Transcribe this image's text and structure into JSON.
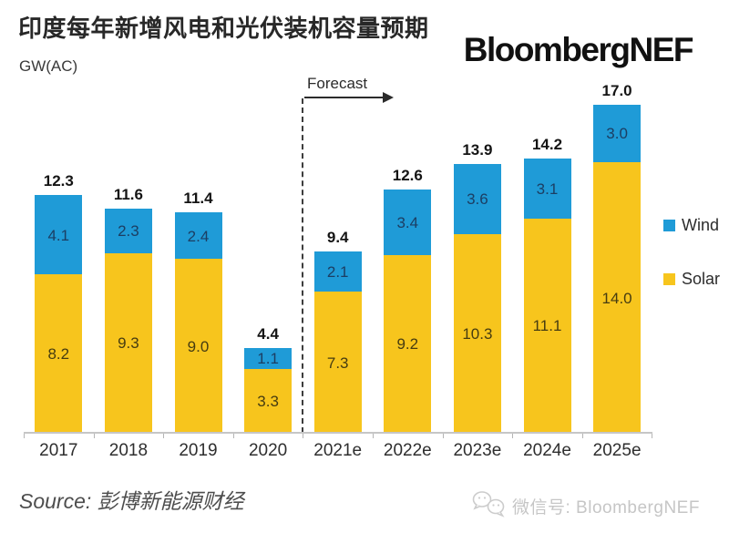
{
  "header": {
    "title": "印度每年新增风电和光伏装机容量预期",
    "brand": "BloombergNEF"
  },
  "chart": {
    "unit_label": "GW(AC)",
    "forecast_label": "Forecast"
  },
  "chart_data": {
    "type": "bar",
    "stacked": true,
    "title": "印度每年新增风电和光伏装机容量预期",
    "ylabel": "GW(AC)",
    "unit": "GW",
    "categories": [
      "2017",
      "2018",
      "2019",
      "2020",
      "2021e",
      "2022e",
      "2023e",
      "2024e",
      "2025e"
    ],
    "series": [
      {
        "name": "Solar",
        "color": "#F7C51D",
        "label_color": "#463c11",
        "values": [
          8.2,
          9.3,
          9.0,
          3.3,
          7.3,
          9.2,
          10.3,
          11.1,
          14.0
        ],
        "labels": [
          "8.2",
          "9.3",
          "9.0",
          "3.3",
          "7.3",
          "9.2",
          "10.3",
          "11.1",
          "14.0"
        ]
      },
      {
        "name": "Wind",
        "color": "#1F9BD7",
        "label_color": "#1c3e63",
        "values": [
          4.1,
          2.3,
          2.4,
          1.1,
          2.1,
          3.4,
          3.6,
          3.1,
          3.0
        ],
        "labels": [
          "4.1",
          "2.3",
          "2.4",
          "1.1",
          "2.1",
          "3.4",
          "3.6",
          "3.1",
          "3.0"
        ]
      }
    ],
    "totals": [
      12.3,
      11.6,
      11.4,
      4.4,
      9.4,
      12.6,
      13.9,
      14.2,
      17.0
    ],
    "total_labels": [
      "12.3",
      "11.6",
      "11.4",
      "4.4",
      "9.4",
      "12.6",
      "13.9",
      "14.2",
      "17.0"
    ],
    "forecast_divider_after_index": 3,
    "forecast_label": "Forecast",
    "legend_position": "right",
    "ylim": [
      0,
      18
    ],
    "grid": false
  },
  "legend": {
    "items": [
      {
        "label": "Wind",
        "color": "#1F9BD7"
      },
      {
        "label": "Solar",
        "color": "#F7C51D"
      }
    ]
  },
  "footer": {
    "source": "Source: 彭博新能源财经",
    "wechat": "微信号: BloombergNEF"
  }
}
